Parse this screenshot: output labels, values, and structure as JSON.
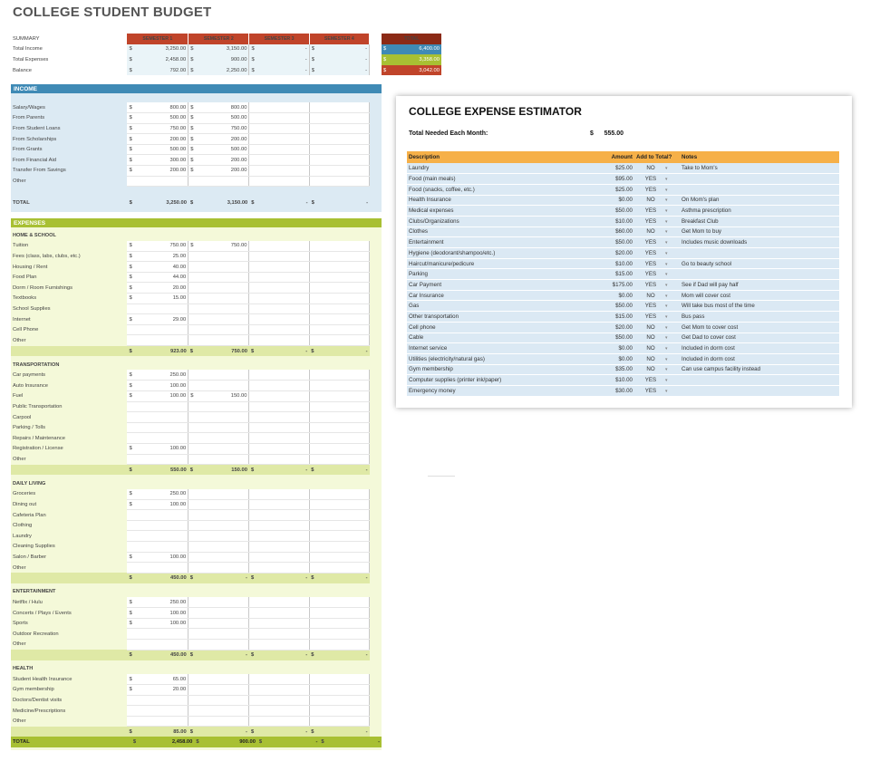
{
  "title": "COLLEGE STUDENT BUDGET",
  "summary": {
    "label": "SUMMARY",
    "headers": [
      "SEMESTER 1",
      "SEMESTER 2",
      "SEMESTER 3",
      "SEMESTER 4"
    ],
    "total_header": "TOTAL",
    "rows": [
      {
        "label": "Total Income",
        "vals": [
          "3,250.00",
          "3,150.00",
          "-",
          "-"
        ],
        "total": "6,400.00"
      },
      {
        "label": "Total Expenses",
        "vals": [
          "2,458.00",
          "900.00",
          "-",
          "-"
        ],
        "total": "3,358.00"
      },
      {
        "label": "Balance",
        "vals": [
          "792.00",
          "2,250.00",
          "-",
          "-"
        ],
        "total": "3,042.00"
      }
    ]
  },
  "currency": "$",
  "income": {
    "header": "INCOME",
    "rows": [
      {
        "label": "Salary/Wages",
        "vals": [
          "800.00",
          "800.00",
          "",
          ""
        ]
      },
      {
        "label": "From Parents",
        "vals": [
          "500.00",
          "500.00",
          "",
          ""
        ]
      },
      {
        "label": "From Student Loans",
        "vals": [
          "750.00",
          "750.00",
          "",
          ""
        ]
      },
      {
        "label": "From Scholarships",
        "vals": [
          "200.00",
          "200.00",
          "",
          ""
        ]
      },
      {
        "label": "From Grants",
        "vals": [
          "500.00",
          "500.00",
          "",
          ""
        ]
      },
      {
        "label": "From Financial Aid",
        "vals": [
          "300.00",
          "200.00",
          "",
          ""
        ]
      },
      {
        "label": "Transfer From Savings",
        "vals": [
          "200.00",
          "200.00",
          "",
          ""
        ]
      },
      {
        "label": "Other",
        "vals": [
          "",
          "",
          "",
          ""
        ]
      }
    ],
    "total_label": "TOTAL",
    "total_vals": [
      "3,250.00",
      "3,150.00",
      "-",
      "-"
    ]
  },
  "expenses": {
    "header": "EXPENSES",
    "sections": [
      {
        "name": "HOME & SCHOOL",
        "rows": [
          {
            "label": "Tuition",
            "vals": [
              "750.00",
              "750.00",
              "",
              ""
            ]
          },
          {
            "label": "Fees (class, labs, clubs, etc.)",
            "vals": [
              "25.00",
              "",
              "",
              ""
            ]
          },
          {
            "label": "Housing / Rent",
            "vals": [
              "40.00",
              "",
              "",
              ""
            ]
          },
          {
            "label": "Food Plan",
            "vals": [
              "44.00",
              "",
              "",
              ""
            ]
          },
          {
            "label": "Dorm / Room Furnishings",
            "vals": [
              "20.00",
              "",
              "",
              ""
            ]
          },
          {
            "label": "Textbooks",
            "vals": [
              "15.00",
              "",
              "",
              ""
            ]
          },
          {
            "label": "School Supplies",
            "vals": [
              "",
              "",
              "",
              ""
            ]
          },
          {
            "label": "Internet",
            "vals": [
              "29.00",
              "",
              "",
              ""
            ]
          },
          {
            "label": "Cell Phone",
            "vals": [
              "",
              "",
              "",
              ""
            ]
          },
          {
            "label": "Other",
            "vals": [
              "",
              "",
              "",
              ""
            ]
          }
        ],
        "subtotal": [
          "923.00",
          "750.00",
          "-",
          "-"
        ]
      },
      {
        "name": "TRANSPORTATION",
        "rows": [
          {
            "label": "Car payments",
            "vals": [
              "250.00",
              "",
              "",
              ""
            ]
          },
          {
            "label": "Auto Insurance",
            "vals": [
              "100.00",
              "",
              "",
              ""
            ]
          },
          {
            "label": "Fuel",
            "vals": [
              "100.00",
              "150.00",
              "",
              ""
            ]
          },
          {
            "label": "Public Transportation",
            "vals": [
              "",
              "",
              "",
              ""
            ]
          },
          {
            "label": "Carpool",
            "vals": [
              "",
              "",
              "",
              ""
            ]
          },
          {
            "label": "Parking / Tolls",
            "vals": [
              "",
              "",
              "",
              ""
            ]
          },
          {
            "label": "Repairs / Maintenance",
            "vals": [
              "",
              "",
              "",
              ""
            ]
          },
          {
            "label": "Registration / License",
            "vals": [
              "100.00",
              "",
              "",
              ""
            ]
          },
          {
            "label": "Other",
            "vals": [
              "",
              "",
              "",
              ""
            ]
          }
        ],
        "subtotal": [
          "550.00",
          "150.00",
          "-",
          "-"
        ]
      },
      {
        "name": "DAILY LIVING",
        "rows": [
          {
            "label": "Groceries",
            "vals": [
              "250.00",
              "",
              "",
              ""
            ]
          },
          {
            "label": "Dining out",
            "vals": [
              "100.00",
              "",
              "",
              ""
            ]
          },
          {
            "label": "Cafeteria Plan",
            "vals": [
              "",
              "",
              "",
              ""
            ]
          },
          {
            "label": "Clothing",
            "vals": [
              "",
              "",
              "",
              ""
            ]
          },
          {
            "label": "Laundry",
            "vals": [
              "",
              "",
              "",
              ""
            ]
          },
          {
            "label": "Cleaning Supplies",
            "vals": [
              "",
              "",
              "",
              ""
            ]
          },
          {
            "label": "Salon / Barber",
            "vals": [
              "100.00",
              "",
              "",
              ""
            ]
          },
          {
            "label": "Other",
            "vals": [
              "",
              "",
              "",
              ""
            ]
          }
        ],
        "subtotal": [
          "450.00",
          "-",
          "-",
          "-"
        ]
      },
      {
        "name": "ENTERTAINMENT",
        "rows": [
          {
            "label": "Netflix / Hulu",
            "vals": [
              "250.00",
              "",
              "",
              ""
            ]
          },
          {
            "label": "Concerts / Plays / Events",
            "vals": [
              "100.00",
              "",
              "",
              ""
            ]
          },
          {
            "label": "Sports",
            "vals": [
              "100.00",
              "",
              "",
              ""
            ]
          },
          {
            "label": "Outdoor Recreation",
            "vals": [
              "",
              "",
              "",
              ""
            ]
          },
          {
            "label": "Other",
            "vals": [
              "",
              "",
              "",
              ""
            ]
          }
        ],
        "subtotal": [
          "450.00",
          "-",
          "-",
          "-"
        ]
      },
      {
        "name": "HEALTH",
        "rows": [
          {
            "label": "Student Health Insurance",
            "vals": [
              "65.00",
              "",
              "",
              ""
            ]
          },
          {
            "label": "Gym membership",
            "vals": [
              "20.00",
              "",
              "",
              ""
            ]
          },
          {
            "label": "Doctors/Dentist visits",
            "vals": [
              "",
              "",
              "",
              ""
            ]
          },
          {
            "label": "Medicine/Prescriptions",
            "vals": [
              "",
              "",
              "",
              ""
            ]
          },
          {
            "label": "Other",
            "vals": [
              "",
              "",
              "",
              ""
            ]
          }
        ],
        "subtotal": [
          "85.00",
          "-",
          "-",
          "-"
        ]
      }
    ],
    "total_label": "TOTAL",
    "total_vals": [
      "2,458.00",
      "900.00",
      "-",
      "-"
    ]
  },
  "estimator": {
    "title": "COLLEGE EXPENSE ESTIMATOR",
    "need_label": "Total Needed Each Month:",
    "need_cur": "$",
    "need_value": "555.00",
    "headers": {
      "desc": "Description",
      "amount": "Amount",
      "add": "Add to Total?",
      "notes": "Notes"
    },
    "dropdown_icon": "▾",
    "rows": [
      {
        "desc": "Laundry",
        "amount": "$25.00",
        "add": "NO",
        "notes": "Take to Mom's"
      },
      {
        "desc": "Food (main meals)",
        "amount": "$95.00",
        "add": "YES",
        "notes": ""
      },
      {
        "desc": "Food (snacks, coffee, etc.)",
        "amount": "$25.00",
        "add": "YES",
        "notes": ""
      },
      {
        "desc": "Health Insurance",
        "amount": "$0.00",
        "add": "NO",
        "notes": "On Mom's plan"
      },
      {
        "desc": "Medical expenses",
        "amount": "$50.00",
        "add": "YES",
        "notes": "Asthma prescription"
      },
      {
        "desc": "Clubs/Organizations",
        "amount": "$10.00",
        "add": "YES",
        "notes": "Breakfast Club"
      },
      {
        "desc": "Clothes",
        "amount": "$60.00",
        "add": "NO",
        "notes": "Get Mom to buy"
      },
      {
        "desc": "Entertainment",
        "amount": "$50.00",
        "add": "YES",
        "notes": "Includes music downloads"
      },
      {
        "desc": "Hygiene (deodorant/shampoo/etc.)",
        "amount": "$20.00",
        "add": "YES",
        "notes": ""
      },
      {
        "desc": "Haircut/manicure/pedicure",
        "amount": "$10.00",
        "add": "YES",
        "notes": "Go to beauty school"
      },
      {
        "desc": "Parking",
        "amount": "$15.00",
        "add": "YES",
        "notes": ""
      },
      {
        "desc": "Car Payment",
        "amount": "$175.00",
        "add": "YES",
        "notes": "See if Dad will pay half"
      },
      {
        "desc": "Car Insurance",
        "amount": "$0.00",
        "add": "NO",
        "notes": "Mom will cover cost"
      },
      {
        "desc": "Gas",
        "amount": "$50.00",
        "add": "YES",
        "notes": "Will take bus most of the time"
      },
      {
        "desc": "Other transportation",
        "amount": "$15.00",
        "add": "YES",
        "notes": "Bus pass"
      },
      {
        "desc": "Cell phone",
        "amount": "$20.00",
        "add": "NO",
        "notes": "Get Mom to cover cost"
      },
      {
        "desc": "Cable",
        "amount": "$50.00",
        "add": "NO",
        "notes": "Get Dad to cover cost"
      },
      {
        "desc": "Internet service",
        "amount": "$0.00",
        "add": "NO",
        "notes": "Included in dorm cost"
      },
      {
        "desc": "Utilities (electricity/natural gas)",
        "amount": "$0.00",
        "add": "NO",
        "notes": "Included in dorm cost"
      },
      {
        "desc": "Gym membership",
        "amount": "$35.00",
        "add": "NO",
        "notes": "Can use campus facility instead"
      },
      {
        "desc": "Computer supplies (printer ink/paper)",
        "amount": "$10.00",
        "add": "YES",
        "notes": ""
      },
      {
        "desc": "Emergency money",
        "amount": "$30.00",
        "add": "YES",
        "notes": ""
      }
    ]
  },
  "colors": {
    "sem1": "#c0442a",
    "sem2": "#c0442a",
    "sem3": "#c0442a",
    "sem4": "#c0442a",
    "total_hdr": "#8b2a16",
    "income_bar": "#3f8ab5",
    "expense_bar": "#a8c033",
    "est_header": "#f6b048"
  }
}
